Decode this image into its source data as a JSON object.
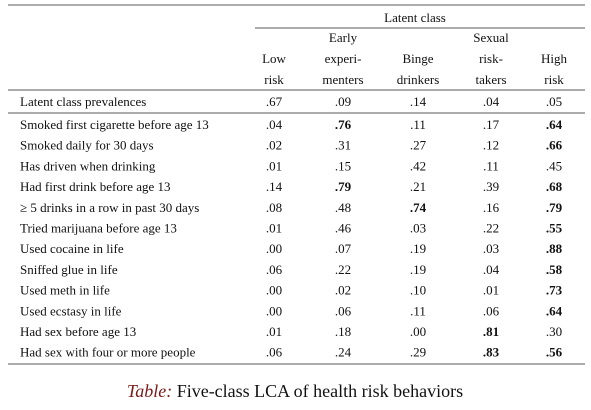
{
  "header": {
    "group": "Latent class",
    "columns": [
      [
        "Low",
        "risk"
      ],
      [
        "Early",
        "experi-",
        "menters"
      ],
      [
        "Binge",
        "drinkers"
      ],
      [
        "Sexual",
        "risk-",
        "takers"
      ],
      [
        "High",
        "risk"
      ]
    ]
  },
  "prevalence": {
    "label": "Latent class prevalences",
    "values": [
      ".67",
      ".09",
      ".14",
      ".04",
      ".05"
    ]
  },
  "rows": [
    {
      "label": "Smoked first cigarette before age 13",
      "values": [
        ".04",
        ".76",
        ".11",
        ".17",
        ".64"
      ],
      "bold": [
        1,
        4
      ]
    },
    {
      "label": "Smoked daily for 30 days",
      "values": [
        ".02",
        ".31",
        ".27",
        ".12",
        ".66"
      ],
      "bold": [
        4
      ]
    },
    {
      "label": "Has driven when drinking",
      "values": [
        ".01",
        ".15",
        ".42",
        ".11",
        ".45"
      ]
    },
    {
      "label": "Had first drink before age 13",
      "values": [
        ".14",
        ".79",
        ".21",
        ".39",
        ".68"
      ],
      "bold": [
        1,
        4
      ]
    },
    {
      "label": "≥ 5 drinks in a row in past 30 days",
      "values": [
        ".08",
        ".48",
        ".74",
        ".16",
        ".79"
      ],
      "bold": [
        2,
        4
      ]
    },
    {
      "label": "Tried marijuana before age 13",
      "values": [
        ".01",
        ".46",
        ".03",
        ".22",
        ".55"
      ],
      "bold": [
        4
      ]
    },
    {
      "label": "Used cocaine in life",
      "values": [
        ".00",
        ".07",
        ".19",
        ".03",
        ".88"
      ],
      "bold": [
        4
      ]
    },
    {
      "label": "Sniffed glue in life",
      "values": [
        ".06",
        ".22",
        ".19",
        ".04",
        ".58"
      ],
      "bold": [
        4
      ]
    },
    {
      "label": "Used meth in life",
      "values": [
        ".00",
        ".02",
        ".10",
        ".01",
        ".73"
      ],
      "bold": [
        4
      ]
    },
    {
      "label": "Used ecstasy in life",
      "values": [
        ".00",
        ".06",
        ".11",
        ".06",
        ".64"
      ],
      "bold": [
        4
      ]
    },
    {
      "label": "Had sex before age 13",
      "values": [
        ".01",
        ".18",
        ".00",
        ".81",
        ".30"
      ],
      "bold": [
        3
      ]
    },
    {
      "label": "Had sex with four or more people",
      "values": [
        ".06",
        ".24",
        ".29",
        ".83",
        ".56"
      ],
      "bold": [
        3,
        4
      ]
    }
  ],
  "caption": {
    "label": "Table:",
    "text": "Five-class LCA of health risk behaviors"
  }
}
